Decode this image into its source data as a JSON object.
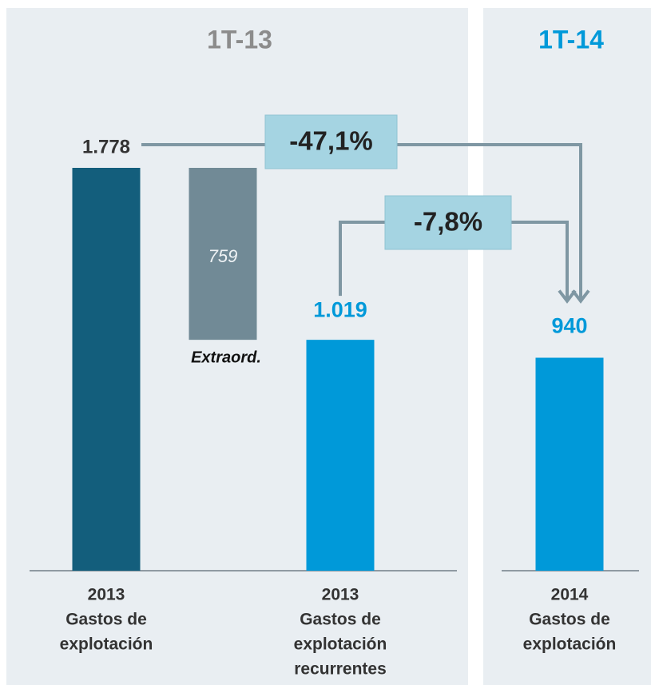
{
  "chart_data": {
    "type": "waterfall",
    "panel_titles": [
      "1T-13",
      "1T-14"
    ],
    "categories": [
      [
        "2013",
        "Gastos de",
        "explotación"
      ],
      null,
      [
        "2013",
        "Gastos de",
        "explotación",
        "recurrentes"
      ],
      [
        "2014",
        "Gastos de",
        "explotación"
      ]
    ],
    "values": [
      1778,
      759,
      1019,
      940
    ],
    "value_labels": [
      "1.778",
      "759",
      "1.019",
      "940"
    ],
    "colors": [
      "#135e7c",
      "#718a96",
      "#0099d9",
      "#0099d9"
    ],
    "bar_annotation": "Extraord.",
    "change_labels": [
      "-47,1%",
      "-7,8%"
    ]
  }
}
